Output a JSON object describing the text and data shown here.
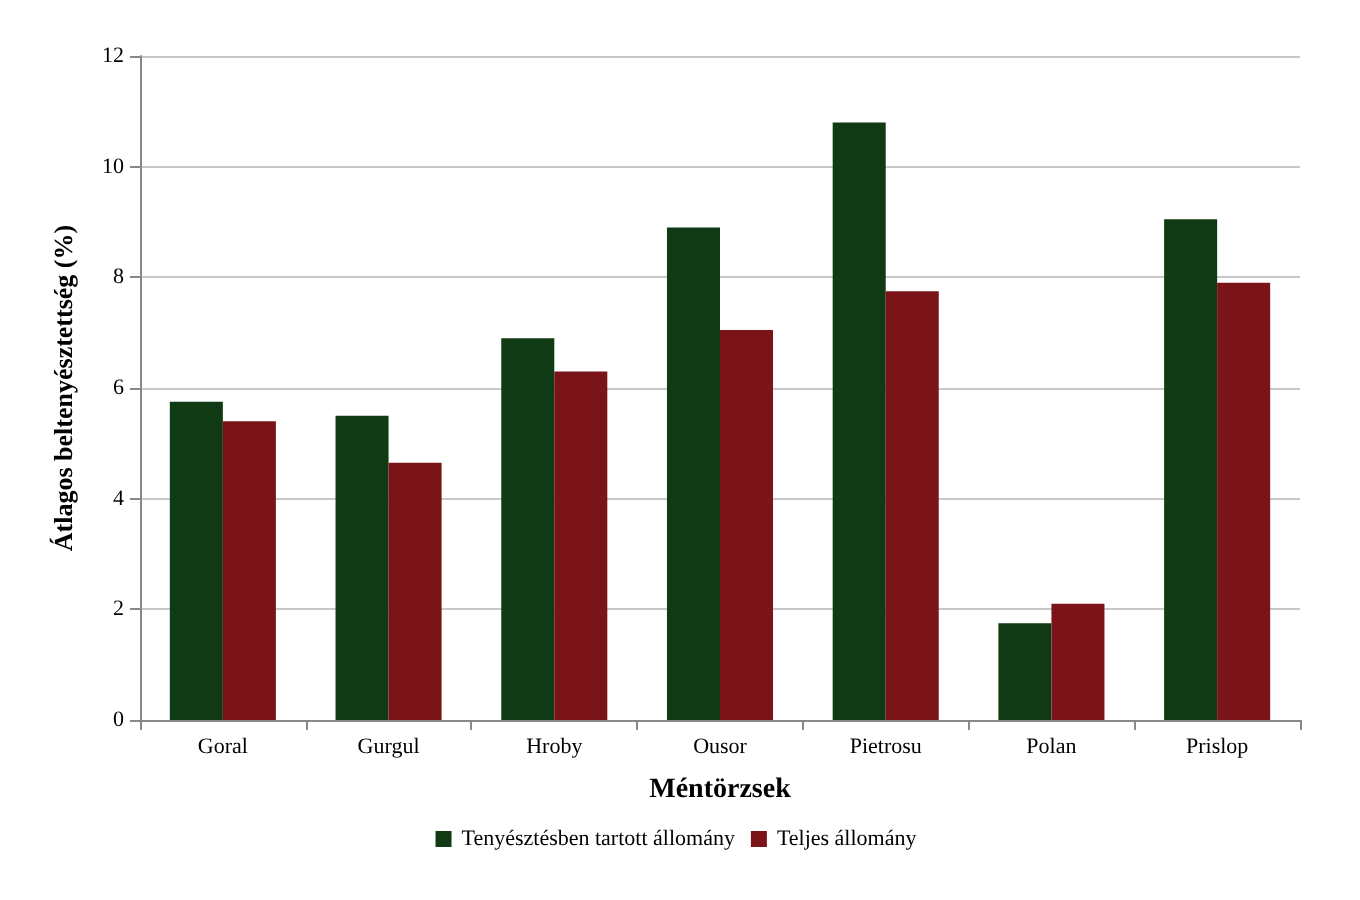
{
  "chart_data": {
    "type": "bar",
    "xlabel": "Méntörzsek",
    "ylabel": "Átlagos beltenyésztettség (%)",
    "categories": [
      "Goral",
      "Gurgul",
      "Hroby",
      "Ousor",
      "Pietrosu",
      "Polan",
      "Prislop"
    ],
    "series": [
      {
        "name": "Tenyésztésben tartott állomány",
        "color": "#0f3a14",
        "values": [
          5.75,
          5.5,
          6.9,
          8.9,
          10.8,
          1.75,
          9.05
        ]
      },
      {
        "name": "Teljes állomány",
        "color": "#7a1418",
        "values": [
          5.4,
          4.65,
          6.3,
          7.05,
          7.75,
          2.1,
          7.9
        ]
      }
    ],
    "ylim": [
      0,
      12
    ],
    "yticks": [
      0,
      2,
      4,
      6,
      8,
      10,
      12
    ],
    "grid": "y",
    "legend": "bottom"
  }
}
